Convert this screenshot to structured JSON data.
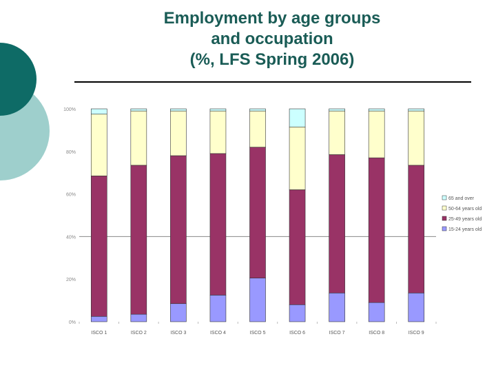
{
  "title_lines": [
    "Employment by age groups",
    "and occupation",
    "(%, LFS Spring 2006)"
  ],
  "colors": {
    "accent_dark": "#0e6b66",
    "accent_light": "#9ecfcc"
  },
  "chart_data": {
    "type": "bar",
    "stacked": true,
    "categories": [
      "ISCO 1",
      "ISCO 2",
      "ISCO 3",
      "ISCO 4",
      "ISCO 5",
      "ISCO 6",
      "ISCO 7",
      "ISCO 8",
      "ISCO 9"
    ],
    "y_ticks": [
      "0%",
      "20%",
      "40%",
      "60%",
      "80%",
      "100%"
    ],
    "ylim": [
      0,
      100
    ],
    "grid": false,
    "legend_position": "right",
    "series": [
      {
        "name": "15-24 years old",
        "color": "#9999ff",
        "values": [
          2.5,
          3.5,
          8.5,
          12.5,
          20.5,
          8,
          13.5,
          9,
          13.5
        ]
      },
      {
        "name": "25-49 years old",
        "color": "#993366",
        "values": [
          66,
          70,
          69.5,
          66.5,
          61.5,
          54,
          65,
          68,
          60
        ]
      },
      {
        "name": "50-64 years old",
        "color": "#ffffcc",
        "values": [
          29,
          25.5,
          21,
          20,
          17,
          29.5,
          20.5,
          22,
          25.5
        ]
      },
      {
        "name": "65 and over",
        "color": "#ccffff",
        "values": [
          2.5,
          1,
          1,
          1,
          1,
          8.5,
          1,
          1,
          1
        ]
      }
    ]
  }
}
